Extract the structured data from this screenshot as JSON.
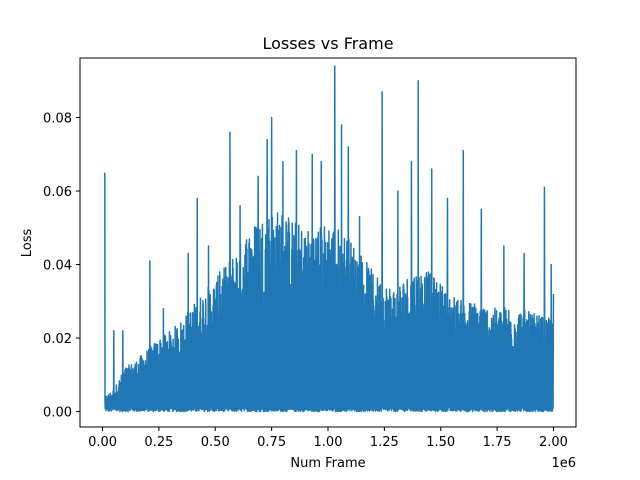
{
  "chart_data": {
    "type": "line",
    "title": "Losses vs Frame",
    "xlabel": "Num Frame",
    "ylabel": "Loss",
    "x_offset_label": "1e6",
    "xlim": [
      -0.1,
      2.1
    ],
    "ylim": [
      -0.0042,
      0.0962
    ],
    "x_ticks": [
      0.0,
      0.25,
      0.5,
      0.75,
      1.0,
      1.25,
      1.5,
      1.75,
      2.0
    ],
    "x_tick_labels": [
      "0.00",
      "0.25",
      "0.50",
      "0.75",
      "1.00",
      "1.25",
      "1.50",
      "1.75",
      "2.00"
    ],
    "y_ticks": [
      0.0,
      0.02,
      0.04,
      0.06,
      0.08
    ],
    "y_tick_labels": [
      "0.00",
      "0.02",
      "0.04",
      "0.06",
      "0.08"
    ],
    "grid": false,
    "line_color": "#1f77b4",
    "series": [
      {
        "envelope_x": [
          0.01,
          0.05,
          0.1,
          0.15,
          0.2,
          0.25,
          0.3,
          0.35,
          0.4,
          0.45,
          0.5,
          0.55,
          0.6,
          0.65,
          0.7,
          0.75,
          0.8,
          0.85,
          0.9,
          0.95,
          1.0,
          1.05,
          1.1,
          1.15,
          1.2,
          1.25,
          1.3,
          1.35,
          1.4,
          1.45,
          1.5,
          1.55,
          1.6,
          1.65,
          1.7,
          1.75,
          1.8,
          1.85,
          1.9,
          1.95,
          2.0
        ],
        "envelope_y": [
          0.004,
          0.006,
          0.012,
          0.014,
          0.017,
          0.02,
          0.022,
          0.025,
          0.029,
          0.033,
          0.036,
          0.04,
          0.045,
          0.05,
          0.053,
          0.055,
          0.055,
          0.052,
          0.05,
          0.05,
          0.052,
          0.05,
          0.047,
          0.043,
          0.038,
          0.035,
          0.034,
          0.037,
          0.039,
          0.038,
          0.035,
          0.032,
          0.03,
          0.03,
          0.029,
          0.028,
          0.029,
          0.028,
          0.027,
          0.026,
          0.025
        ],
        "spikes": [
          [
            0.01,
            0.065
          ],
          [
            0.05,
            0.022
          ],
          [
            0.09,
            0.022
          ],
          [
            0.21,
            0.041
          ],
          [
            0.27,
            0.028
          ],
          [
            0.38,
            0.043
          ],
          [
            0.42,
            0.058
          ],
          [
            0.47,
            0.045
          ],
          [
            0.52,
            0.038
          ],
          [
            0.565,
            0.076
          ],
          [
            0.61,
            0.056
          ],
          [
            0.69,
            0.064
          ],
          [
            0.73,
            0.074
          ],
          [
            0.75,
            0.08
          ],
          [
            0.8,
            0.068
          ],
          [
            0.86,
            0.071
          ],
          [
            0.93,
            0.07
          ],
          [
            0.97,
            0.068
          ],
          [
            1.03,
            0.094
          ],
          [
            1.06,
            0.078
          ],
          [
            1.09,
            0.072
          ],
          [
            1.14,
            0.053
          ],
          [
            1.24,
            0.087
          ],
          [
            1.31,
            0.06
          ],
          [
            1.37,
            0.068
          ],
          [
            1.4,
            0.09
          ],
          [
            1.46,
            0.066
          ],
          [
            1.53,
            0.058
          ],
          [
            1.6,
            0.071
          ],
          [
            1.68,
            0.055
          ],
          [
            1.78,
            0.045
          ],
          [
            1.87,
            0.043
          ],
          [
            1.96,
            0.061
          ],
          [
            1.99,
            0.04
          ],
          [
            2.0,
            0.032
          ]
        ]
      }
    ]
  }
}
